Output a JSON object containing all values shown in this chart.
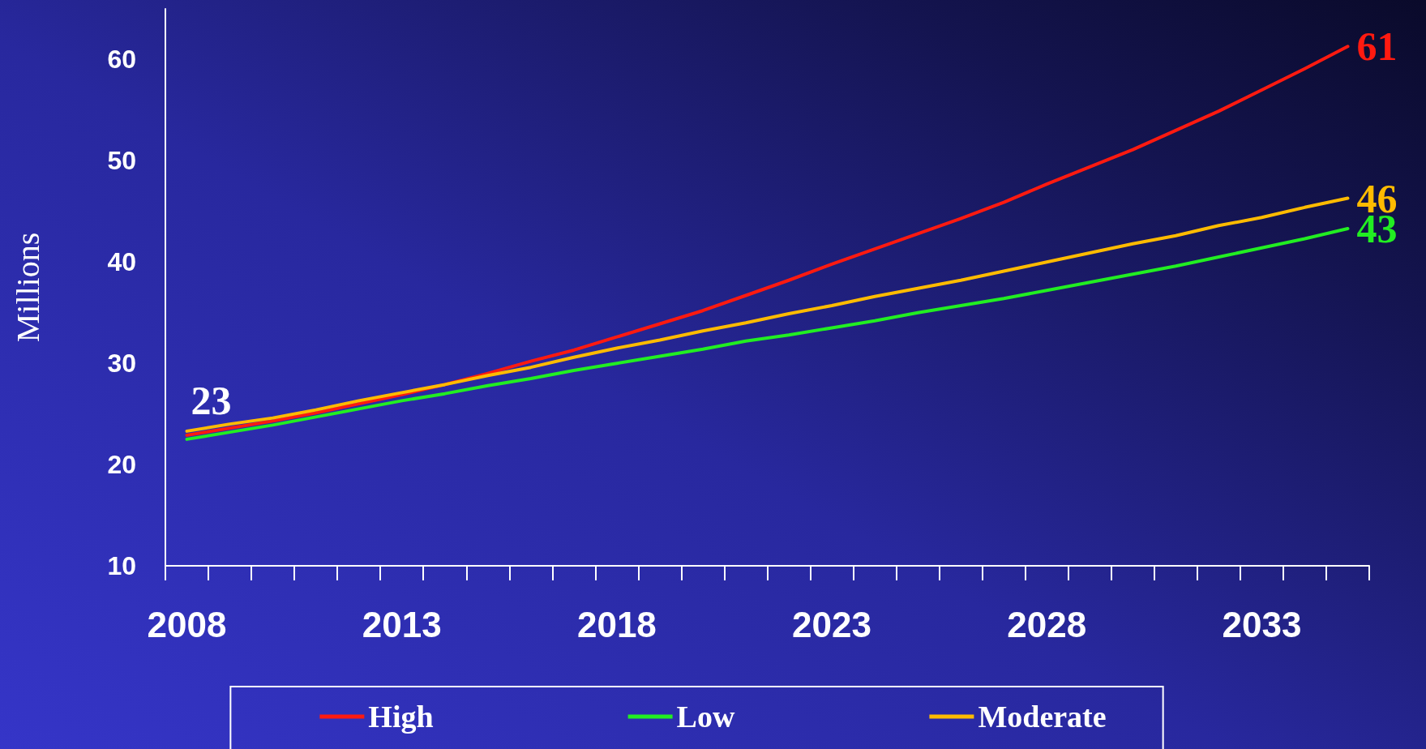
{
  "chart_data": {
    "type": "line",
    "ylabel": "Millions",
    "categories": [
      "2008",
      null,
      null,
      null,
      null,
      "2013",
      null,
      null,
      null,
      null,
      "2018",
      null,
      null,
      null,
      null,
      "2023",
      null,
      null,
      null,
      null,
      "2028",
      null,
      null,
      null,
      null,
      "2033",
      null,
      null
    ],
    "series": [
      {
        "name": "High",
        "color": "#ff1a10",
        "values": [
          22.9,
          23.6,
          24.3,
          25.1,
          26.0,
          26.9,
          27.9,
          29.0,
          30.2,
          31.3,
          32.6,
          33.9,
          35.2,
          36.7,
          38.2,
          39.8,
          41.3,
          42.8,
          44.3,
          45.9,
          47.7,
          49.4,
          51.1,
          53.0,
          54.9,
          57.0,
          59.1,
          61.3
        ]
      },
      {
        "name": "Low",
        "color": "#22ee22",
        "values": [
          22.5,
          23.2,
          23.9,
          24.7,
          25.5,
          26.3,
          27.0,
          27.8,
          28.5,
          29.3,
          30.0,
          30.7,
          31.4,
          32.2,
          32.8,
          33.5,
          34.2,
          35.0,
          35.7,
          36.4,
          37.2,
          38.0,
          38.8,
          39.6,
          40.5,
          41.4,
          42.3,
          43.3
        ]
      },
      {
        "name": "Moderate",
        "color": "#ffbb00",
        "values": [
          23.3,
          24.0,
          24.6,
          25.4,
          26.3,
          27.1,
          27.9,
          28.8,
          29.6,
          30.6,
          31.5,
          32.3,
          33.2,
          34.0,
          34.9,
          35.7,
          36.6,
          37.4,
          38.2,
          39.1,
          40.0,
          40.9,
          41.8,
          42.6,
          43.6,
          44.4,
          45.4,
          46.3
        ]
      }
    ],
    "annotations": [
      {
        "text": "23",
        "x": "2008",
        "y": 23
      },
      "61",
      "43",
      "46"
    ],
    "ylim": [
      10,
      65
    ],
    "yticks": [
      10,
      20,
      30,
      40,
      50,
      60
    ],
    "grid": false,
    "legend": "bottom",
    "marker": "none",
    "line_style": "solid"
  }
}
